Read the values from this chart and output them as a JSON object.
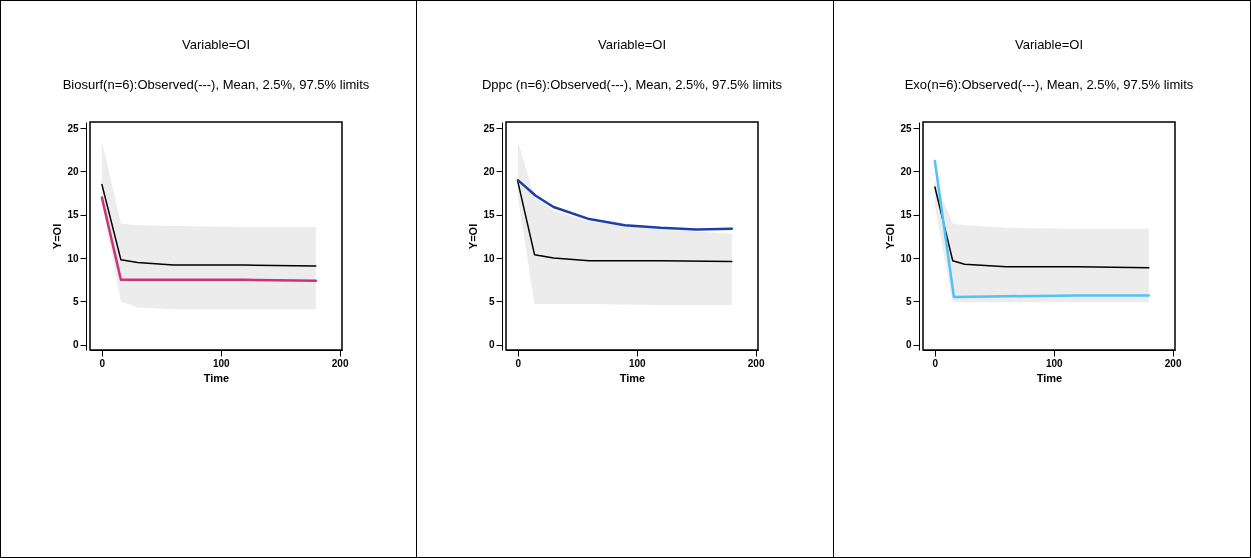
{
  "chart_data": [
    {
      "type": "line",
      "title": "Variable=OI",
      "subtitle": "Biosurf(n=6):Observed(---), Mean, 2.5%, 97.5% limits",
      "xlabel": "Time",
      "ylabel": "Y=OI",
      "xlim": [
        -10,
        202
      ],
      "ylim": [
        -0.6,
        25.7
      ],
      "xticks": [
        0,
        100,
        200
      ],
      "yticks": [
        0,
        5,
        10,
        15,
        20,
        25
      ],
      "grid": false,
      "series": [
        {
          "color": "#000000",
          "x": [
            0,
            16,
            30,
            60,
            120,
            180
          ],
          "values": [
            18.5,
            9.8,
            9.5,
            9.2,
            9.2,
            9.1
          ],
          "lower": [
            16.5,
            5,
            4.3,
            4.1,
            4.1,
            4.1
          ],
          "upper": [
            23.5,
            14,
            13.8,
            13.7,
            13.6,
            13.6
          ]
        },
        {
          "color": "#cc3377",
          "x": [
            0,
            16,
            60,
            120,
            180
          ],
          "values": [
            17,
            7.5,
            7.5,
            7.5,
            7.4
          ]
        }
      ]
    },
    {
      "type": "line",
      "title": "Variable=OI",
      "subtitle": "Dppc (n=6):Observed(---), Mean, 2.5%, 97.5% limits",
      "xlabel": "Time",
      "ylabel": "Y=OI",
      "xlim": [
        -10,
        202
      ],
      "ylim": [
        -0.6,
        25.7
      ],
      "xticks": [
        0,
        100,
        200
      ],
      "yticks": [
        0,
        5,
        10,
        15,
        20,
        25
      ],
      "grid": false,
      "series": [
        {
          "color": "#000000",
          "x": [
            0,
            14,
            30,
            60,
            120,
            180
          ],
          "values": [
            18.8,
            10.4,
            10,
            9.7,
            9.7,
            9.6
          ],
          "lower": [
            17,
            4.7,
            4.7,
            4.7,
            4.6,
            4.6
          ],
          "upper": [
            23.5,
            17,
            15.5,
            14.2,
            13.3,
            12.8
          ]
        },
        {
          "color": "#1f3fa8",
          "x": [
            0,
            15,
            30,
            60,
            90,
            120,
            150,
            180
          ],
          "values": [
            19,
            17.2,
            15.9,
            14.5,
            13.8,
            13.5,
            13.3,
            13.4
          ]
        }
      ]
    },
    {
      "type": "line",
      "title": "Variable=OI",
      "subtitle": "Exo(n=6):Observed(---), Mean, 2.5%, 97.5% limits",
      "xlabel": "Time",
      "ylabel": "Y=OI",
      "xlim": [
        -10,
        202
      ],
      "ylim": [
        -0.6,
        25.7
      ],
      "xticks": [
        0,
        100,
        200
      ],
      "yticks": [
        0,
        5,
        10,
        15,
        20,
        25
      ],
      "grid": false,
      "series": [
        {
          "color": "#000000",
          "x": [
            0,
            15,
            25,
            60,
            120,
            180
          ],
          "values": [
            18.2,
            9.7,
            9.3,
            9,
            9,
            8.9
          ],
          "lower": [
            16,
            5,
            4.9,
            4.9,
            4.9,
            4.9
          ],
          "upper": [
            19,
            14,
            13.8,
            13.5,
            13.4,
            13.4
          ]
        },
        {
          "color": "#4fc3f7",
          "x": [
            0,
            16,
            60,
            120,
            180
          ],
          "values": [
            21.2,
            5.5,
            5.6,
            5.7,
            5.7
          ]
        }
      ]
    }
  ]
}
